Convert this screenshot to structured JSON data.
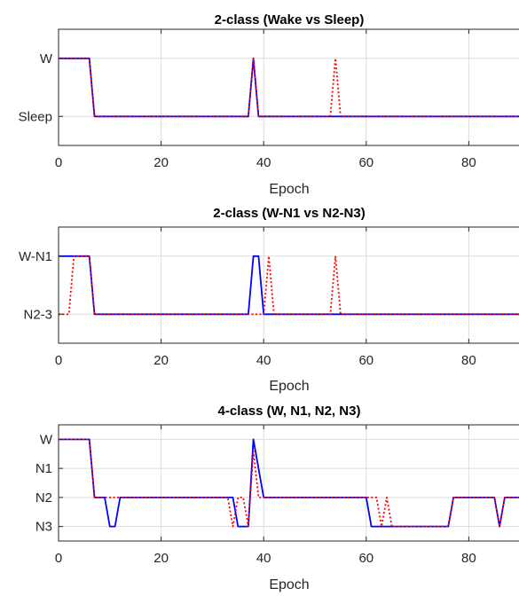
{
  "chart_data": [
    {
      "type": "line",
      "title": "2-class (Wake vs Sleep)",
      "xlabel": "Epoch",
      "ylabel": "",
      "xlim": [
        0,
        90
      ],
      "ylim": [
        -0.5,
        1.5
      ],
      "xticks": [
        0,
        20,
        40,
        60,
        80
      ],
      "yticks": [
        0,
        1
      ],
      "ytick_labels": [
        "Sleep",
        "W"
      ],
      "grid": true,
      "series": [
        {
          "color": "#0000ff",
          "style": "solid",
          "points": [
            [
              0,
              1
            ],
            [
              6,
              1
            ],
            [
              7,
              0
            ],
            [
              37,
              0
            ],
            [
              38,
              1
            ],
            [
              39,
              0
            ],
            [
              90,
              0
            ]
          ]
        },
        {
          "color": "#ff0000",
          "style": "dotted",
          "points": [
            [
              0,
              1
            ],
            [
              6,
              1
            ],
            [
              7,
              0
            ],
            [
              37,
              0
            ],
            [
              38,
              1
            ],
            [
              39,
              0
            ],
            [
              53,
              0
            ],
            [
              54,
              1
            ],
            [
              55,
              0
            ],
            [
              90,
              0
            ]
          ]
        }
      ]
    },
    {
      "type": "line",
      "title": "2-class (W-N1 vs N2-N3)",
      "xlabel": "Epoch",
      "ylabel": "",
      "xlim": [
        0,
        90
      ],
      "ylim": [
        -0.5,
        1.5
      ],
      "xticks": [
        0,
        20,
        40,
        60,
        80
      ],
      "yticks": [
        0,
        1
      ],
      "ytick_labels": [
        "N2-3",
        "W-N1"
      ],
      "grid": true,
      "series": [
        {
          "color": "#0000ff",
          "style": "solid",
          "points": [
            [
              0,
              1
            ],
            [
              6,
              1
            ],
            [
              7,
              0
            ],
            [
              37,
              0
            ],
            [
              38,
              1
            ],
            [
              39,
              1
            ],
            [
              40,
              0
            ],
            [
              90,
              0
            ]
          ]
        },
        {
          "color": "#ff0000",
          "style": "dotted",
          "points": [
            [
              0,
              0
            ],
            [
              2,
              0
            ],
            [
              3,
              1
            ],
            [
              6,
              1
            ],
            [
              7,
              0
            ],
            [
              40,
              0
            ],
            [
              41,
              1
            ],
            [
              42,
              0
            ],
            [
              53,
              0
            ],
            [
              54,
              1
            ],
            [
              55,
              0
            ],
            [
              90,
              0
            ]
          ]
        }
      ]
    },
    {
      "type": "line",
      "title": "4-class (W, N1, N2, N3)",
      "xlabel": "Epoch",
      "ylabel": "",
      "xlim": [
        0,
        90
      ],
      "ylim": [
        -0.5,
        3.5
      ],
      "xticks": [
        0,
        20,
        40,
        60,
        80
      ],
      "yticks": [
        0,
        1,
        2,
        3
      ],
      "ytick_labels": [
        "N3",
        "N2",
        "N1",
        "W"
      ],
      "grid": true,
      "series": [
        {
          "color": "#0000ff",
          "style": "solid",
          "points": [
            [
              0,
              3
            ],
            [
              6,
              3
            ],
            [
              7,
              1
            ],
            [
              9,
              1
            ],
            [
              10,
              0
            ],
            [
              11,
              0
            ],
            [
              12,
              1
            ],
            [
              34,
              1
            ],
            [
              35,
              0
            ],
            [
              37,
              0
            ],
            [
              38,
              3
            ],
            [
              40,
              1
            ],
            [
              60,
              1
            ],
            [
              61,
              0
            ],
            [
              76,
              0
            ],
            [
              77,
              1
            ],
            [
              85,
              1
            ],
            [
              86,
              0
            ],
            [
              87,
              1
            ],
            [
              90,
              1
            ]
          ]
        },
        {
          "color": "#ff0000",
          "style": "dotted",
          "points": [
            [
              0,
              3
            ],
            [
              6,
              3
            ],
            [
              7,
              1
            ],
            [
              33,
              1
            ],
            [
              34,
              0
            ],
            [
              35,
              1
            ],
            [
              36,
              1
            ],
            [
              37,
              0
            ],
            [
              38,
              2.6
            ],
            [
              39,
              1
            ],
            [
              61,
              1
            ],
            [
              62,
              1
            ],
            [
              63,
              0
            ],
            [
              64,
              1
            ],
            [
              65,
              0
            ],
            [
              76,
              0
            ],
            [
              77,
              1
            ],
            [
              85,
              1
            ],
            [
              86,
              0
            ],
            [
              87,
              1
            ],
            [
              90,
              1
            ]
          ]
        }
      ]
    }
  ]
}
